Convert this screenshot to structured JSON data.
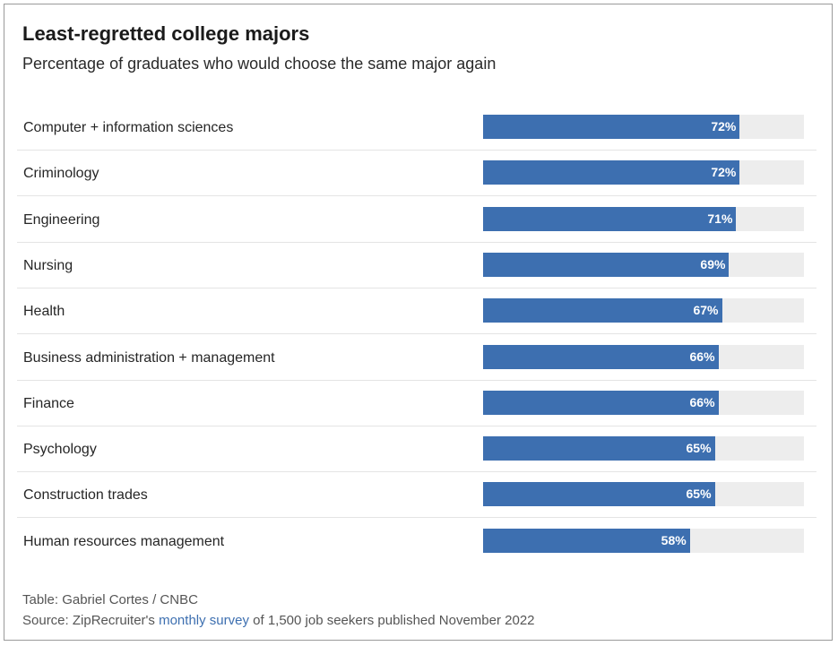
{
  "colors": {
    "bar": "#3d6fb0",
    "track": "#ededed",
    "link": "#3d6fb0"
  },
  "chart_data": {
    "type": "bar",
    "orientation": "horizontal",
    "title": "Least-regretted college majors",
    "subtitle": "Percentage of graduates who would choose the same major again",
    "categories": [
      "Computer + information sciences",
      "Criminology",
      "Engineering",
      "Nursing",
      "Health",
      "Business administration + management",
      "Finance",
      "Psychology",
      "Construction trades",
      "Human resources management"
    ],
    "values": [
      72,
      72,
      71,
      69,
      67,
      66,
      66,
      65,
      65,
      58
    ],
    "value_labels": [
      "72%",
      "72%",
      "71%",
      "69%",
      "67%",
      "66%",
      "66%",
      "65%",
      "65%",
      "58%"
    ],
    "xlim": [
      0,
      90
    ],
    "grid": false,
    "legend": "none"
  },
  "footer": {
    "credit": "Table: Gabriel Cortes / CNBC",
    "source_prefix": "Source: ZipRecruiter's",
    "source_link": "monthly survey",
    "source_suffix": "of 1,500 job seekers published November 2022"
  }
}
